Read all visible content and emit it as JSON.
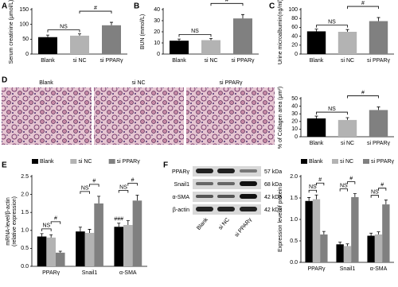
{
  "chart_data": [
    {
      "type": "bar",
      "panel_label": "A",
      "ylabel": "Serum creatinine (μmol/L)",
      "categories": [
        "Blank",
        "si NC",
        "si PPARγ"
      ],
      "values": [
        57,
        62,
        97
      ],
      "errors": [
        7,
        6,
        10
      ],
      "colors": [
        "#000000",
        "#b3b3b3",
        "#808080"
      ],
      "ylim": [
        0,
        150
      ],
      "yticks": [
        0,
        50,
        100,
        150
      ],
      "annotations": [
        "NS",
        "#"
      ]
    },
    {
      "type": "bar",
      "panel_label": "B",
      "ylabel": "BUN (mmol/L)",
      "categories": [
        "Blank",
        "si NC",
        "si PPARγ"
      ],
      "values": [
        12,
        12.5,
        32
      ],
      "errors": [
        1.5,
        1.5,
        3.5
      ],
      "colors": [
        "#000000",
        "#b3b3b3",
        "#808080"
      ],
      "ylim": [
        0,
        40
      ],
      "yticks": [
        0,
        10,
        20,
        30,
        40
      ],
      "annotations": [
        "NS",
        "#"
      ]
    },
    {
      "type": "bar",
      "panel_label": "C",
      "ylabel": "Urine microalbumin(ng/ml)",
      "categories": [
        "Blank",
        "si NC",
        "si PPARγ"
      ],
      "values": [
        51,
        50,
        74
      ],
      "errors": [
        5,
        5,
        8
      ],
      "colors": [
        "#000000",
        "#b3b3b3",
        "#808080"
      ],
      "ylim": [
        0,
        100
      ],
      "yticks": [
        0,
        20,
        40,
        60,
        80,
        100
      ],
      "annotations": [
        "NS",
        "#"
      ]
    },
    {
      "type": "bar",
      "ylabel": "% of Collagen area (μm²)",
      "categories": [
        "Blank",
        "si NC",
        "si PPARγ"
      ],
      "values": [
        24,
        22,
        35
      ],
      "errors": [
        3,
        3,
        4
      ],
      "colors": [
        "#000000",
        "#b3b3b3",
        "#808080"
      ],
      "ylim": [
        0,
        50
      ],
      "yticks": [
        0,
        10,
        20,
        30,
        40,
        50
      ],
      "annotations": [
        "NS",
        "#"
      ]
    },
    {
      "type": "grouped_bar",
      "panel_label": "E",
      "ylabel": [
        "mRNA-level/β-actin",
        "(relative expression)"
      ],
      "categories": [
        "PPARγ",
        "Snail1",
        "α-SMA"
      ],
      "series": [
        {
          "name": "Blank",
          "color": "#000000",
          "values": [
            0.83,
            0.97,
            1.1
          ],
          "errors": [
            0.08,
            0.12,
            0.1
          ]
        },
        {
          "name": "si NC",
          "color": "#b3b3b3",
          "values": [
            0.8,
            0.93,
            1.15
          ],
          "errors": [
            0.08,
            0.1,
            0.12
          ]
        },
        {
          "name": "si PPARγ",
          "color": "#808080",
          "values": [
            0.38,
            1.75,
            1.83
          ],
          "errors": [
            0.04,
            0.2,
            0.15
          ]
        }
      ],
      "ylim": [
        0,
        2.5
      ],
      "yticks": [
        {
          "value": 0,
          "label": "0.0"
        },
        0.5,
        {
          "value": 1,
          "label": "1.0"
        },
        1.5,
        {
          "value": 2,
          "label": "2.0"
        },
        2.5
      ],
      "annotations": [
        "NS",
        "#",
        "NS",
        "#",
        "NS",
        "#",
        "###"
      ]
    },
    {
      "type": "grouped_bar",
      "ylabel": "Expression level of protein",
      "categories": [
        "PPARγ",
        "Snail1",
        "α-SMA"
      ],
      "series": [
        {
          "name": "Blank",
          "color": "#000000",
          "values": [
            1.43,
            0.42,
            0.62
          ],
          "errors": [
            0.08,
            0.05,
            0.06
          ]
        },
        {
          "name": "si NC",
          "color": "#b3b3b3",
          "values": [
            1.47,
            0.38,
            0.65
          ],
          "errors": [
            0.1,
            0.05,
            0.06
          ]
        },
        {
          "name": "si PPARγ",
          "color": "#808080",
          "values": [
            0.65,
            1.52,
            1.35
          ],
          "errors": [
            0.07,
            0.08,
            0.1
          ]
        }
      ],
      "ylim": [
        0,
        2
      ],
      "yticks": [
        {
          "value": 0,
          "label": "0.0"
        },
        0.5,
        {
          "value": 1,
          "label": "1.0"
        },
        1.5,
        {
          "value": 2,
          "label": "2.0"
        }
      ],
      "annotations": [
        "NS",
        "#",
        "NS",
        "#",
        "NS",
        "#"
      ]
    }
  ],
  "micrographs": {
    "panel_label": "D",
    "labels": [
      "Blank",
      "si NC",
      "si PPARγ"
    ]
  },
  "western_blot": {
    "panel_label": "F",
    "proteins": [
      "PPARγ",
      "Snail1",
      "α-SMA",
      "β-actin"
    ],
    "sizes": [
      "57 kDa",
      "68 kDa",
      "42 kDa",
      "42 kDa"
    ],
    "lanes": [
      "Blank",
      "si NC",
      "si PPARγ"
    ]
  }
}
